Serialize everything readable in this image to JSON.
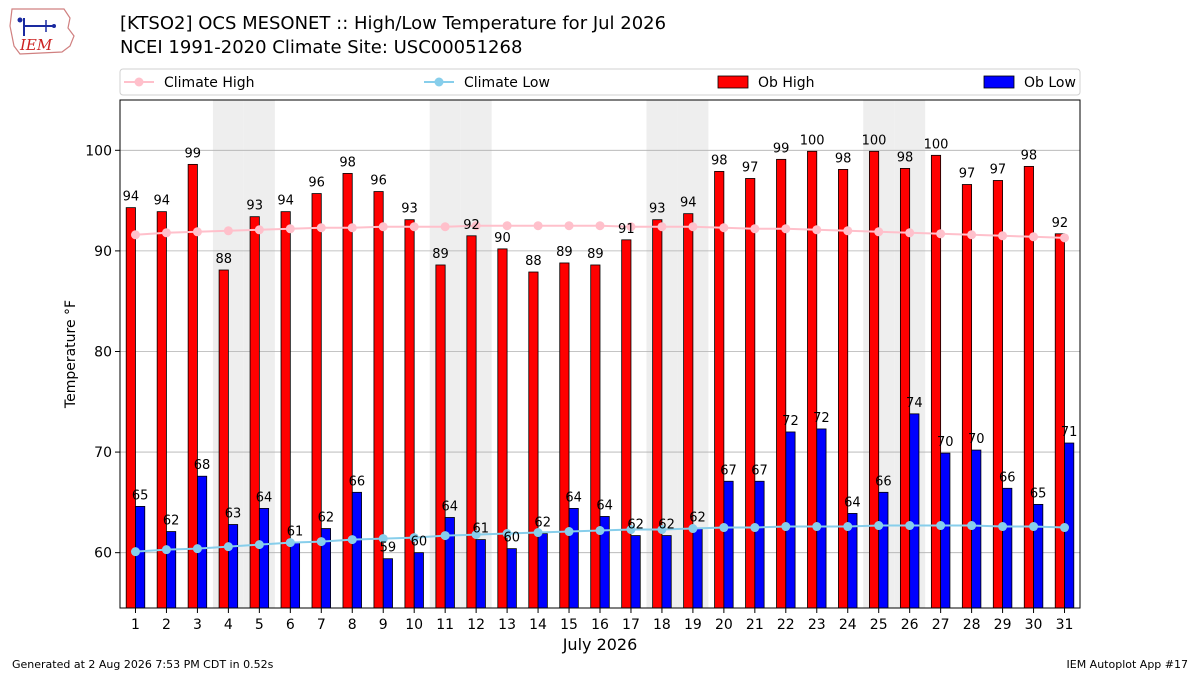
{
  "header": {
    "logo_text": "IEM",
    "title_line1": "[KTSO2] OCS MESONET :: High/Low Temperature for Jul 2026",
    "title_line2": "NCEI 1991-2020 Climate Site: USC00051268"
  },
  "footer": {
    "left": "Generated at 2 Aug 2026 7:53 PM CDT in 0.52s",
    "right": "IEM Autoplot App #17"
  },
  "colors": {
    "ob_high": "#ff0000",
    "ob_low": "#0000ff",
    "climate_high": "#ffc0cb",
    "climate_low": "#87ceeb",
    "weekend_shade": "#eeeeee",
    "grid": "#b0b0b0"
  },
  "chart_data": {
    "type": "bar",
    "xlabel": "July 2026",
    "ylabel": "Temperature °F",
    "ylim": [
      54.5,
      105
    ],
    "yticks": [
      60,
      70,
      80,
      90,
      100
    ],
    "grid": "horizontal",
    "legend_position": "top",
    "categories": [
      1,
      2,
      3,
      4,
      5,
      6,
      7,
      8,
      9,
      10,
      11,
      12,
      13,
      14,
      15,
      16,
      17,
      18,
      19,
      20,
      21,
      22,
      23,
      24,
      25,
      26,
      27,
      28,
      29,
      30,
      31
    ],
    "shaded_days": [
      4,
      5,
      11,
      12,
      18,
      19,
      25,
      26
    ],
    "series": [
      {
        "name": "Ob High",
        "type": "bar",
        "values": [
          94.3,
          93.9,
          98.6,
          88.1,
          93.4,
          93.9,
          95.7,
          97.7,
          95.9,
          93.1,
          88.6,
          91.5,
          90.2,
          87.9,
          88.8,
          88.6,
          91.1,
          93.1,
          93.7,
          97.9,
          97.2,
          99.1,
          99.9,
          98.1,
          99.9,
          98.2,
          99.5,
          96.6,
          97.0,
          98.4,
          91.7
        ],
        "labels": [
          "94",
          "94",
          "99",
          "88",
          "93",
          "94",
          "96",
          "98",
          "96",
          "93",
          "89",
          "92",
          "90",
          "88",
          "89",
          "89",
          "91",
          "93",
          "94",
          "98",
          "97",
          "99",
          "100",
          "98",
          "100",
          "98",
          "100",
          "97",
          "97",
          "98",
          "92"
        ]
      },
      {
        "name": "Ob Low",
        "type": "bar",
        "values": [
          64.6,
          62.1,
          67.6,
          62.8,
          64.4,
          61.0,
          62.4,
          66.0,
          59.4,
          60.0,
          63.5,
          61.3,
          60.4,
          61.9,
          64.4,
          63.6,
          61.7,
          61.7,
          62.4,
          67.1,
          67.1,
          72.0,
          72.3,
          63.9,
          66.0,
          73.8,
          69.9,
          70.2,
          66.4,
          64.8,
          70.9
        ],
        "labels": [
          "65",
          "62",
          "68",
          "63",
          "64",
          "61",
          "62",
          "66",
          "59",
          "60",
          "64",
          "61",
          "60",
          "62",
          "64",
          "64",
          "62",
          "62",
          "62",
          "67",
          "67",
          "72",
          "72",
          "64",
          "66",
          "74",
          "70",
          "70",
          "66",
          "65",
          "71"
        ]
      },
      {
        "name": "Climate High",
        "type": "line",
        "values": [
          91.6,
          91.8,
          91.9,
          92.0,
          92.1,
          92.2,
          92.3,
          92.3,
          92.4,
          92.4,
          92.4,
          92.5,
          92.5,
          92.5,
          92.5,
          92.5,
          92.4,
          92.4,
          92.4,
          92.3,
          92.2,
          92.2,
          92.1,
          92.0,
          91.9,
          91.8,
          91.7,
          91.6,
          91.5,
          91.4,
          91.3
        ]
      },
      {
        "name": "Climate Low",
        "type": "line",
        "values": [
          60.1,
          60.3,
          60.4,
          60.6,
          60.8,
          61.0,
          61.1,
          61.3,
          61.4,
          61.5,
          61.7,
          61.8,
          61.9,
          62.0,
          62.1,
          62.2,
          62.3,
          62.3,
          62.4,
          62.5,
          62.5,
          62.6,
          62.6,
          62.6,
          62.7,
          62.7,
          62.7,
          62.7,
          62.6,
          62.6,
          62.5
        ]
      }
    ]
  }
}
